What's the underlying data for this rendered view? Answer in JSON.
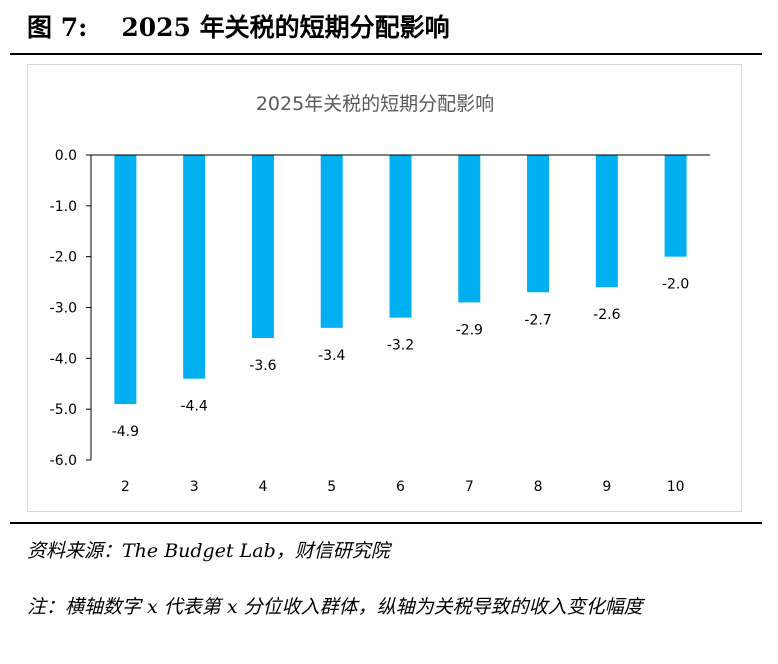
{
  "figure": {
    "number": "图 7:",
    "title": "2025 年关税的短期分配影响"
  },
  "source_line": "资料来源：The Budget Lab，财信研究院",
  "note_line": "注：横轴数字 x 代表第 x 分位收入群体，纵轴为关税导致的收入变化幅度",
  "chart_data": {
    "type": "bar",
    "title": "2025年关税的短期分配影响",
    "xlabel": "",
    "ylabel": "",
    "categories": [
      "2",
      "3",
      "4",
      "5",
      "6",
      "7",
      "8",
      "9",
      "10"
    ],
    "values": [
      -4.9,
      -4.4,
      -3.6,
      -3.4,
      -3.2,
      -2.9,
      -2.7,
      -2.6,
      -2.0
    ],
    "value_labels": [
      "-4.9",
      "-4.4",
      "-3.6",
      "-3.4",
      "-3.2",
      "-2.9",
      "-2.7",
      "-2.6",
      "-2.0"
    ],
    "ylim": [
      -6.0,
      0.0
    ],
    "yticks": [
      0.0,
      -1.0,
      -2.0,
      -3.0,
      -4.0,
      -5.0,
      -6.0
    ],
    "ytick_labels": [
      "0.0",
      "-1.0",
      "-2.0",
      "-3.0",
      "-4.0",
      "-5.0",
      "-6.0"
    ],
    "bar_color": "#00b0f0",
    "grid": false,
    "legend": "none"
  }
}
